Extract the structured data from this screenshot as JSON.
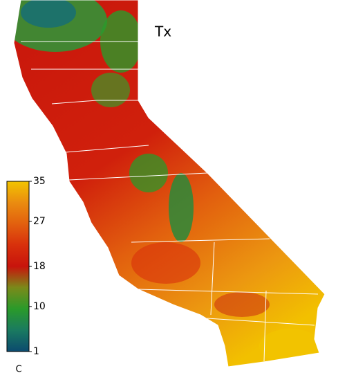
{
  "map": {
    "title": "Tx",
    "colorbar": {
      "label": "C",
      "lim": [
        1,
        35
      ],
      "ticks": [
        35,
        27,
        18,
        10,
        1
      ],
      "colormap": [
        "#0b4a6e",
        "#1a7a60",
        "#2a9a2a",
        "#7a8a1a",
        "#c8140c",
        "#d8300c",
        "#e2600e",
        "#ea8c10",
        "#f2c400"
      ]
    }
  }
}
